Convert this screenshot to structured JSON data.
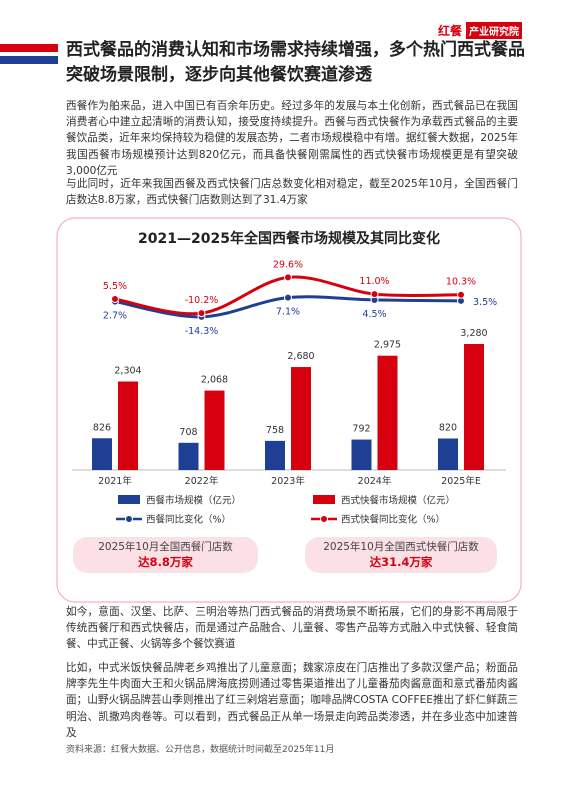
{
  "header": {
    "logo_main": "红餐",
    "logo_sub": "产业研究院",
    "title": "西式餐品的消费认知和市场需求持续增强，多个热门西式餐品突破场景限制，逐步向其他餐饮赛道渗透"
  },
  "paragraphs": [
    "西餐作为舶来品，进入中国已有百余年历史。经过多年的发展与本土化创新，西式餐品已在我国消费者心中建立起清晰的消费认知，接受度持续提升。西餐与西式快餐作为承载西式餐品的主要餐饮品类，近年来均保持较为稳健的发展态势，二者市场规模稳中有增。据红餐大数据，2025年我国西餐市场规模预计达到820亿元，而具备快餐刚需属性的西式快餐市场规模更是有望突破3,000亿元",
    "与此同时，近年来我国西餐及西式快餐门店总数变化相对稳定，截至2025年10月，全国西餐门店数达8.8万家，西式快餐门店数则达到了31.4万家"
  ],
  "chart_data": {
    "type": "bar-line",
    "title": "2021—2025年全国西餐市场规模及其同比变化",
    "categories": [
      "2021年",
      "2022年",
      "2023年",
      "2024年",
      "2025年E"
    ],
    "series": [
      {
        "name": "西餐市场规模（亿元）",
        "type": "bar",
        "color": "#1f3f94",
        "values": [
          826,
          708,
          758,
          792,
          820
        ]
      },
      {
        "name": "西式快餐市场规模（亿元）",
        "type": "bar",
        "color": "#d7000f",
        "values": [
          2304,
          2068,
          2680,
          2975,
          3280
        ],
        "value_labels": [
          "2,304",
          "2,068",
          "2,680",
          "2,975",
          "3,280"
        ]
      },
      {
        "name": "西餐同比变化（%）",
        "type": "line",
        "axis": "y2",
        "color": "#1f3f94",
        "values": [
          2.7,
          -14.3,
          7.1,
          4.5,
          3.5
        ],
        "value_labels": [
          "2.7%",
          "-14.3%",
          "7.1%",
          "4.5%",
          "3.5%"
        ]
      },
      {
        "name": "西式快餐同比变化（%）",
        "type": "line",
        "axis": "y2",
        "color": "#d7000f",
        "values": [
          5.5,
          -10.2,
          29.6,
          11.0,
          10.3
        ],
        "value_labels": [
          "5.5%",
          "-10.2%",
          "29.6%",
          "11.0%",
          "10.3%"
        ]
      }
    ]
  },
  "callouts": [
    {
      "caption": "2025年10月全国西餐门店数",
      "value": "达8.8万家"
    },
    {
      "caption": "2025年10月全国西式快餐门店数",
      "value": "达31.4万家"
    }
  ],
  "paragraphs_after": [
    "如今，意面、汉堡、比萨、三明治等热门西式餐品的消费场景不断拓展，它们的身影不再局限于传统西餐厅和西式快餐店，而是通过产品融合、儿童餐、零售产品等方式融入中式快餐、轻食简餐、中式正餐、火锅等多个餐饮赛道",
    "比如，中式米饭快餐品牌老乡鸡推出了儿童意面；魏家凉皮在门店推出了多款汉堡产品；粉面品牌李先生牛肉面大王和火锅品牌海底捞则通过零售渠道推出了儿童番茄肉酱意面和意式番茄肉酱面；山野火锅品牌芸山季则推出了红三剁熔岩意面；咖啡品牌COSTA COFFEE推出了虾仁鲜蔬三明治、凯撒鸡肉卷等。可以看到，西式餐品正从单一场景走向跨品类渗透，并在多业态中加速普及"
  ],
  "source": "资料来源：红餐大数据、公开信息，数据统计时间截至2025年11月"
}
